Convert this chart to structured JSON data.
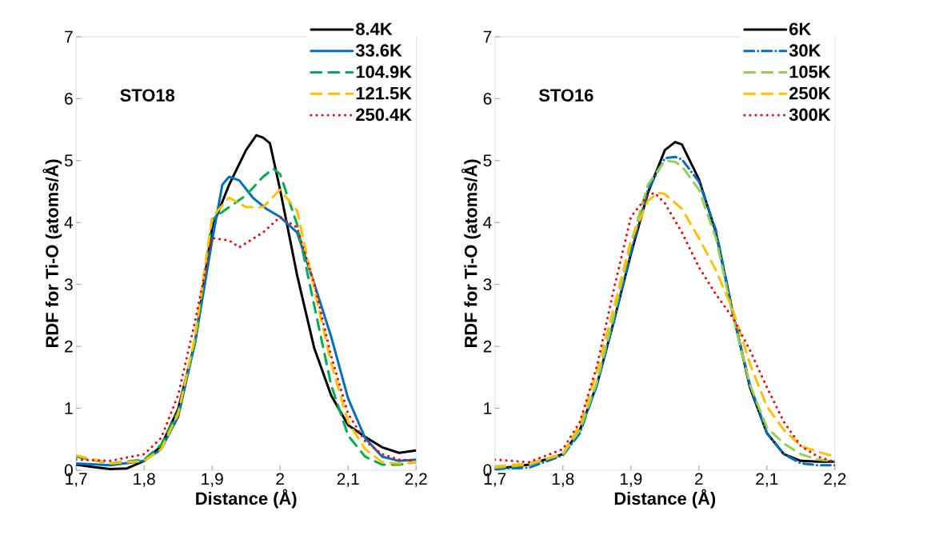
{
  "chart_data": [
    {
      "type": "line",
      "title": "STO18",
      "xlabel": "Distance (Å)",
      "ylabel": "RDF for Ti-O (atoms/Å)",
      "legend": "top right",
      "xlim": [
        1.7,
        2.2
      ],
      "ylim": [
        0,
        7
      ],
      "xticks": [
        {
          "value": 1.7,
          "label": "1,7"
        },
        {
          "value": 1.8,
          "label": "1,8"
        },
        {
          "value": 1.9,
          "label": "1,9"
        },
        {
          "value": 2.0,
          "label": "2"
        },
        {
          "value": 2.1,
          "label": "2,1"
        },
        {
          "value": 2.2,
          "label": "2,2"
        }
      ],
      "yticks": [
        0,
        1,
        2,
        3,
        4,
        5,
        6,
        7
      ],
      "series": [
        {
          "name": "8.4K",
          "color": "#000000",
          "line_style": "solid",
          "x": [
            1.7,
            1.725,
            1.75,
            1.775,
            1.8,
            1.825,
            1.85,
            1.875,
            1.9,
            1.925,
            1.95,
            1.965,
            1.975,
            1.985,
            2.0,
            2.025,
            2.05,
            2.075,
            2.1,
            2.125,
            2.15,
            2.175,
            2.2
          ],
          "values": [
            0.09,
            0.05,
            0.02,
            0.03,
            0.15,
            0.39,
            0.99,
            2.07,
            3.92,
            4.61,
            5.17,
            5.41,
            5.37,
            5.28,
            4.53,
            3.15,
            1.98,
            1.21,
            0.73,
            0.54,
            0.37,
            0.28,
            0.32
          ]
        },
        {
          "name": "33.6K",
          "color": "#0070c0",
          "line_style": "solid",
          "x": [
            1.7,
            1.75,
            1.8,
            1.825,
            1.85,
            1.875,
            1.9,
            1.915,
            1.925,
            1.94,
            1.96,
            1.98,
            2.0,
            2.025,
            2.05,
            2.075,
            2.1,
            2.125,
            2.15,
            2.175,
            2.2
          ],
          "values": [
            0.11,
            0.08,
            0.15,
            0.34,
            0.86,
            2.07,
            3.71,
            4.61,
            4.74,
            4.68,
            4.4,
            4.22,
            4.09,
            3.84,
            3.02,
            2.16,
            1.16,
            0.52,
            0.22,
            0.15,
            0.17
          ]
        },
        {
          "name": "104.9K",
          "color": "#00b050",
          "line_style": "dashed",
          "x": [
            1.7,
            1.75,
            1.8,
            1.825,
            1.85,
            1.875,
            1.9,
            1.925,
            1.95,
            1.975,
            1.99,
            2.0,
            2.025,
            2.05,
            2.075,
            2.1,
            2.125,
            2.15,
            2.175,
            2.2
          ],
          "values": [
            0.22,
            0.11,
            0.17,
            0.41,
            0.95,
            2.07,
            4.05,
            4.25,
            4.44,
            4.74,
            4.87,
            4.78,
            3.97,
            2.67,
            1.38,
            0.56,
            0.22,
            0.09,
            0.09,
            0.13
          ]
        },
        {
          "name": "121.5K",
          "color": "#ffc000",
          "line_style": "dashed",
          "x": [
            1.7,
            1.75,
            1.8,
            1.825,
            1.85,
            1.875,
            1.9,
            1.925,
            1.95,
            1.975,
            2.0,
            2.025,
            2.05,
            2.075,
            2.1,
            2.125,
            2.15,
            2.175,
            2.2
          ],
          "values": [
            0.24,
            0.11,
            0.15,
            0.34,
            0.91,
            2.16,
            4.09,
            4.4,
            4.25,
            4.25,
            4.53,
            4.19,
            2.94,
            1.73,
            0.78,
            0.34,
            0.13,
            0.11,
            0.13
          ]
        },
        {
          "name": "250.4K",
          "color": "#ff0000",
          "line_style": "dotted",
          "x": [
            1.7,
            1.75,
            1.8,
            1.825,
            1.85,
            1.875,
            1.9,
            1.925,
            1.94,
            1.975,
            2.0,
            2.025,
            2.05,
            2.075,
            2.1,
            2.125,
            2.15,
            2.175,
            2.2
          ],
          "values": [
            0.17,
            0.15,
            0.26,
            0.52,
            1.21,
            2.41,
            3.75,
            3.71,
            3.6,
            3.84,
            4.09,
            3.92,
            3.02,
            1.85,
            0.91,
            0.47,
            0.26,
            0.17,
            0.15
          ]
        }
      ]
    },
    {
      "type": "line",
      "title": "STO16",
      "xlabel": "Distance (Å)",
      "ylabel": "RDF for Ti-O (atoms/Å)",
      "legend": "top right",
      "xlim": [
        1.7,
        2.2
      ],
      "ylim": [
        0,
        7
      ],
      "xticks": [
        {
          "value": 1.7,
          "label": "1,7"
        },
        {
          "value": 1.8,
          "label": "1,8"
        },
        {
          "value": 1.9,
          "label": "1,9"
        },
        {
          "value": 2.0,
          "label": "2"
        },
        {
          "value": 2.1,
          "label": "2,1"
        },
        {
          "value": 2.2,
          "label": "2,2"
        }
      ],
      "yticks": [
        0,
        1,
        2,
        3,
        4,
        5,
        6,
        7
      ],
      "series": [
        {
          "name": "6K",
          "color": "#000000",
          "line_style": "solid",
          "x": [
            1.7,
            1.75,
            1.8,
            1.825,
            1.85,
            1.875,
            1.9,
            1.925,
            1.95,
            1.965,
            1.975,
            2.0,
            2.025,
            2.05,
            2.075,
            2.1,
            2.125,
            2.15,
            2.175,
            2.2
          ],
          "values": [
            0.02,
            0.09,
            0.26,
            0.65,
            1.38,
            2.41,
            3.49,
            4.48,
            5.17,
            5.3,
            5.26,
            4.7,
            3.84,
            2.54,
            1.34,
            0.6,
            0.26,
            0.15,
            0.14,
            0.14
          ]
        },
        {
          "name": "30K",
          "color": "#0070c0",
          "line_style": "dashdot",
          "x": [
            1.7,
            1.75,
            1.8,
            1.825,
            1.85,
            1.875,
            1.9,
            1.925,
            1.95,
            1.965,
            1.975,
            2.0,
            2.025,
            2.05,
            2.075,
            2.1,
            2.125,
            2.15,
            2.175,
            2.2
          ],
          "values": [
            0.02,
            0.04,
            0.24,
            0.6,
            1.38,
            2.41,
            3.53,
            4.53,
            5.04,
            5.06,
            5.02,
            4.66,
            3.88,
            2.54,
            1.38,
            0.6,
            0.26,
            0.11,
            0.08,
            0.08
          ]
        },
        {
          "name": "105K",
          "color": "#92d050",
          "line_style": "dashed",
          "x": [
            1.7,
            1.75,
            1.8,
            1.825,
            1.85,
            1.875,
            1.9,
            1.925,
            1.95,
            1.965,
            1.975,
            2.0,
            2.025,
            2.05,
            2.075,
            2.1,
            2.125,
            2.15,
            2.175,
            2.2
          ],
          "values": [
            0.04,
            0.09,
            0.26,
            0.65,
            1.42,
            2.5,
            3.66,
            4.61,
            5.0,
            4.98,
            4.91,
            4.53,
            3.75,
            2.5,
            1.38,
            0.69,
            0.43,
            0.26,
            0.17,
            0.15
          ]
        },
        {
          "name": "250K",
          "color": "#ffc000",
          "line_style": "dashed",
          "x": [
            1.7,
            1.75,
            1.8,
            1.825,
            1.85,
            1.875,
            1.9,
            1.925,
            1.94,
            1.95,
            1.975,
            2.0,
            2.025,
            2.05,
            2.075,
            2.1,
            2.125,
            2.15,
            2.175,
            2.2
          ],
          "values": [
            0.06,
            0.11,
            0.26,
            0.73,
            1.59,
            2.63,
            3.71,
            4.35,
            4.48,
            4.46,
            4.22,
            3.75,
            3.23,
            2.59,
            1.72,
            1.03,
            0.65,
            0.39,
            0.3,
            0.22
          ]
        },
        {
          "name": "300K",
          "color": "#ff0000",
          "line_style": "dotted",
          "x": [
            1.7,
            1.75,
            1.8,
            1.825,
            1.85,
            1.875,
            1.9,
            1.925,
            1.935,
            1.95,
            1.975,
            2.0,
            2.025,
            2.05,
            2.075,
            2.1,
            2.125,
            2.15,
            2.175,
            2.2
          ],
          "values": [
            0.17,
            0.13,
            0.34,
            0.78,
            1.68,
            2.93,
            4.09,
            4.44,
            4.48,
            4.31,
            3.84,
            3.28,
            2.84,
            2.46,
            1.94,
            1.34,
            0.78,
            0.39,
            0.22,
            0.13
          ]
        }
      ]
    }
  ]
}
